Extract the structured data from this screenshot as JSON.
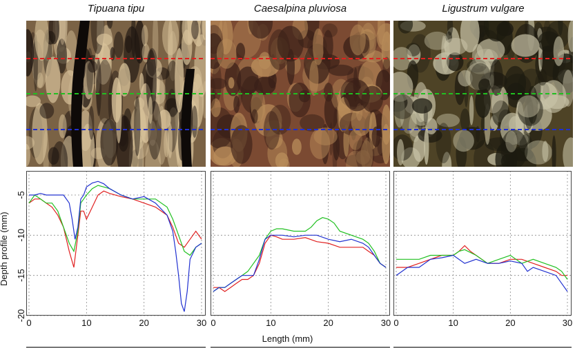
{
  "titles": [
    "Tipuana tipu",
    "Caesalpina pluviosa",
    "Ligustrum vulgare"
  ],
  "photos": [
    {
      "name": "tipuana-bark-photo",
      "base": "#7a6245",
      "light": "#d8c29a",
      "dark": "#1e1510"
    },
    {
      "name": "caesalpina-bark-photo",
      "base": "#7b4a32",
      "light": "#b98d5a",
      "dark": "#3a2018"
    },
    {
      "name": "ligustrum-bark-photo",
      "base": "#4e4326",
      "light": "#c7c2a6",
      "dark": "#1c1a10"
    }
  ],
  "line_colors": {
    "red": "#e02020",
    "green": "#20c020",
    "blue": "#2030d0"
  },
  "chart_data": [
    {
      "type": "line",
      "title": "Tipuana tipu",
      "xlabel": "Length (mm)",
      "ylabel": "Depth profile (mm)",
      "xlim": [
        0,
        30
      ],
      "ylim": [
        -20,
        -2
      ],
      "xticks": [
        0,
        10,
        20,
        30
      ],
      "yticks": [
        -5,
        -10,
        -15,
        -20
      ],
      "grid": true,
      "series": [
        {
          "color": "red",
          "x": [
            0,
            1,
            2,
            3,
            4,
            5,
            6,
            7,
            7.8,
            8.5,
            9,
            9.5,
            10,
            11,
            12,
            13,
            14,
            16,
            18,
            20,
            22,
            24,
            25,
            26,
            27,
            28,
            29,
            30
          ],
          "y": [
            -6,
            -5.5,
            -5.5,
            -6,
            -6.5,
            -7.5,
            -9,
            -12,
            -14,
            -10,
            -7,
            -7,
            -8,
            -6.5,
            -5,
            -4.5,
            -4.8,
            -5.2,
            -5.5,
            -6,
            -6.5,
            -7.5,
            -9,
            -11,
            -11.5,
            -10.5,
            -9.5,
            -10.5
          ]
        },
        {
          "color": "green",
          "x": [
            0,
            1,
            2,
            3,
            4,
            5,
            6,
            7,
            7.8,
            8.5,
            9,
            9.5,
            10,
            11,
            12,
            13,
            14,
            16,
            18,
            20,
            22,
            24,
            25,
            26,
            27,
            28,
            29,
            30
          ],
          "y": [
            -6,
            -5,
            -5.5,
            -6,
            -6,
            -7,
            -9,
            -11,
            -12,
            -9.5,
            -6,
            -5.5,
            -5,
            -4.2,
            -3.8,
            -4,
            -4.2,
            -5,
            -5.5,
            -5.5,
            -5.5,
            -6.5,
            -8,
            -10,
            -12,
            -12.5,
            -11.5,
            -11
          ]
        },
        {
          "color": "blue",
          "x": [
            0,
            1,
            2,
            3,
            4,
            5,
            6,
            7,
            7.5,
            8,
            8.5,
            9,
            9.5,
            10,
            11,
            12,
            13,
            14,
            16,
            18,
            20,
            22,
            24,
            25,
            25.5,
            26,
            26.5,
            27,
            27.5,
            28,
            29,
            30
          ],
          "y": [
            -5,
            -5,
            -4.8,
            -5,
            -5,
            -5,
            -5,
            -6,
            -8,
            -10.5,
            -9,
            -5.5,
            -5,
            -4,
            -3.5,
            -3.3,
            -3.6,
            -4.2,
            -5,
            -5.5,
            -5.2,
            -6,
            -7.5,
            -9.5,
            -12,
            -15,
            -18.5,
            -19.5,
            -17,
            -13,
            -11.5,
            -11
          ]
        }
      ]
    },
    {
      "type": "line",
      "title": "Caesalpina pluviosa",
      "xlabel": "Length (mm)",
      "ylabel": "",
      "xlim": [
        0,
        30
      ],
      "ylim": [
        -20,
        -2
      ],
      "xticks": [
        0,
        10,
        20,
        30
      ],
      "yticks": [
        -5,
        -10,
        -15,
        -20
      ],
      "grid": true,
      "series": [
        {
          "color": "red",
          "x": [
            0,
            1,
            2,
            3,
            4,
            5,
            6,
            7,
            8,
            9,
            10,
            11,
            12,
            14,
            16,
            18,
            20,
            22,
            24,
            26,
            27,
            28,
            29,
            30
          ],
          "y": [
            -16.5,
            -16.5,
            -17,
            -16.5,
            -16,
            -15.5,
            -15.5,
            -15,
            -13.5,
            -11,
            -10,
            -10.2,
            -10.5,
            -10.5,
            -10.3,
            -10.8,
            -11,
            -11.5,
            -11.5,
            -11.5,
            -12,
            -12.5,
            -13.5,
            -14
          ]
        },
        {
          "color": "green",
          "x": [
            0,
            1,
            2,
            3,
            4,
            5,
            6,
            7,
            8,
            9,
            10,
            11,
            12,
            14,
            16,
            17,
            18,
            19,
            20,
            21,
            22,
            24,
            26,
            27,
            28,
            29,
            30
          ],
          "y": [
            -17,
            -16.5,
            -16.5,
            -16,
            -15.5,
            -15,
            -14.5,
            -13.5,
            -12.5,
            -10.5,
            -9.5,
            -9.2,
            -9.2,
            -9.5,
            -9.5,
            -9,
            -8.2,
            -7.8,
            -8,
            -8.5,
            -9.5,
            -10,
            -10.5,
            -11,
            -12,
            -13.5,
            -14
          ]
        },
        {
          "color": "blue",
          "x": [
            0,
            1,
            2,
            3,
            4,
            5,
            6,
            7,
            8,
            9,
            10,
            11,
            12,
            14,
            16,
            18,
            20,
            22,
            24,
            26,
            27,
            28,
            29,
            30
          ],
          "y": [
            -17,
            -16.5,
            -16.5,
            -16,
            -15.5,
            -15,
            -15,
            -15,
            -13,
            -10.5,
            -10,
            -10,
            -10,
            -10.2,
            -10,
            -10,
            -10.5,
            -10.8,
            -10.5,
            -11,
            -11.5,
            -12.5,
            -13.5,
            -14
          ]
        }
      ]
    },
    {
      "type": "line",
      "title": "Ligustrum vulgare",
      "xlabel": "Length (mm)",
      "ylabel": "",
      "xlim": [
        0,
        30
      ],
      "ylim": [
        -20,
        -2
      ],
      "xticks": [
        0,
        10,
        20,
        30
      ],
      "yticks": [
        -5,
        -10,
        -15,
        -20
      ],
      "grid": true,
      "series": [
        {
          "color": "red",
          "x": [
            0,
            2,
            4,
            6,
            8,
            10,
            11,
            12,
            13,
            14,
            16,
            18,
            20,
            22,
            24,
            26,
            28,
            29,
            30
          ],
          "y": [
            -14,
            -14,
            -13.5,
            -13,
            -12.5,
            -12.5,
            -12,
            -11.3,
            -12,
            -12.5,
            -13.5,
            -13.5,
            -13,
            -13,
            -13.5,
            -14,
            -14.5,
            -15,
            -15
          ]
        },
        {
          "color": "green",
          "x": [
            0,
            2,
            4,
            6,
            8,
            10,
            11,
            12,
            14,
            16,
            18,
            20,
            22,
            24,
            26,
            28,
            29,
            30
          ],
          "y": [
            -13,
            -13,
            -13,
            -12.5,
            -12.5,
            -12.5,
            -12,
            -11.8,
            -12.5,
            -13.5,
            -13,
            -12.5,
            -13.5,
            -13,
            -13.5,
            -14,
            -14.5,
            -15.5
          ]
        },
        {
          "color": "blue",
          "x": [
            0,
            2,
            4,
            6,
            8,
            10,
            12,
            14,
            16,
            18,
            20,
            22,
            23,
            24,
            26,
            28,
            29,
            30
          ],
          "y": [
            -15,
            -14,
            -14,
            -13,
            -12.8,
            -12.5,
            -13.5,
            -13,
            -13.5,
            -13.5,
            -13.2,
            -13.5,
            -14.5,
            -14,
            -14.5,
            -15,
            -16,
            -17
          ]
        }
      ]
    }
  ],
  "axis": {
    "xlabel": "Length (mm)",
    "ylabel": "Depth profile (mm)"
  }
}
